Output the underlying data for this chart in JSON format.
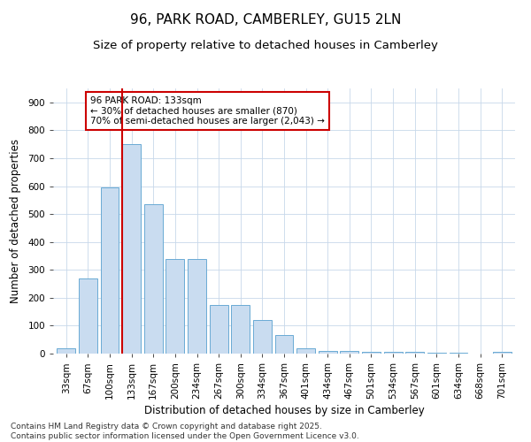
{
  "title": "96, PARK ROAD, CAMBERLEY, GU15 2LN",
  "subtitle": "Size of property relative to detached houses in Camberley",
  "xlabel": "Distribution of detached houses by size in Camberley",
  "ylabel": "Number of detached properties",
  "categories": [
    "33sqm",
    "67sqm",
    "100sqm",
    "133sqm",
    "167sqm",
    "200sqm",
    "234sqm",
    "267sqm",
    "300sqm",
    "334sqm",
    "367sqm",
    "401sqm",
    "434sqm",
    "467sqm",
    "501sqm",
    "534sqm",
    "567sqm",
    "601sqm",
    "634sqm",
    "668sqm",
    "701sqm"
  ],
  "values": [
    20,
    270,
    595,
    750,
    535,
    340,
    340,
    175,
    175,
    120,
    65,
    20,
    10,
    10,
    5,
    5,
    5,
    3,
    3,
    0,
    7
  ],
  "bar_color": "#c9dcf0",
  "bar_edge_color": "#6aaad4",
  "red_line_index": 3,
  "annotation_text": "96 PARK ROAD: 133sqm\n← 30% of detached houses are smaller (870)\n70% of semi-detached houses are larger (2,043) →",
  "annotation_box_color": "#ffffff",
  "annotation_box_edge": "#cc0000",
  "annotation_text_color": "#000000",
  "footnote1": "Contains HM Land Registry data © Crown copyright and database right 2025.",
  "footnote2": "Contains public sector information licensed under the Open Government Licence v3.0.",
  "ylim": [
    0,
    950
  ],
  "yticks": [
    0,
    100,
    200,
    300,
    400,
    500,
    600,
    700,
    800,
    900
  ],
  "bg_color": "#ffffff",
  "grid_color": "#c8d8ea",
  "title_fontsize": 11,
  "subtitle_fontsize": 9.5,
  "axis_label_fontsize": 8.5,
  "tick_fontsize": 7.5,
  "annotation_fontsize": 7.5,
  "footnote_fontsize": 6.5
}
